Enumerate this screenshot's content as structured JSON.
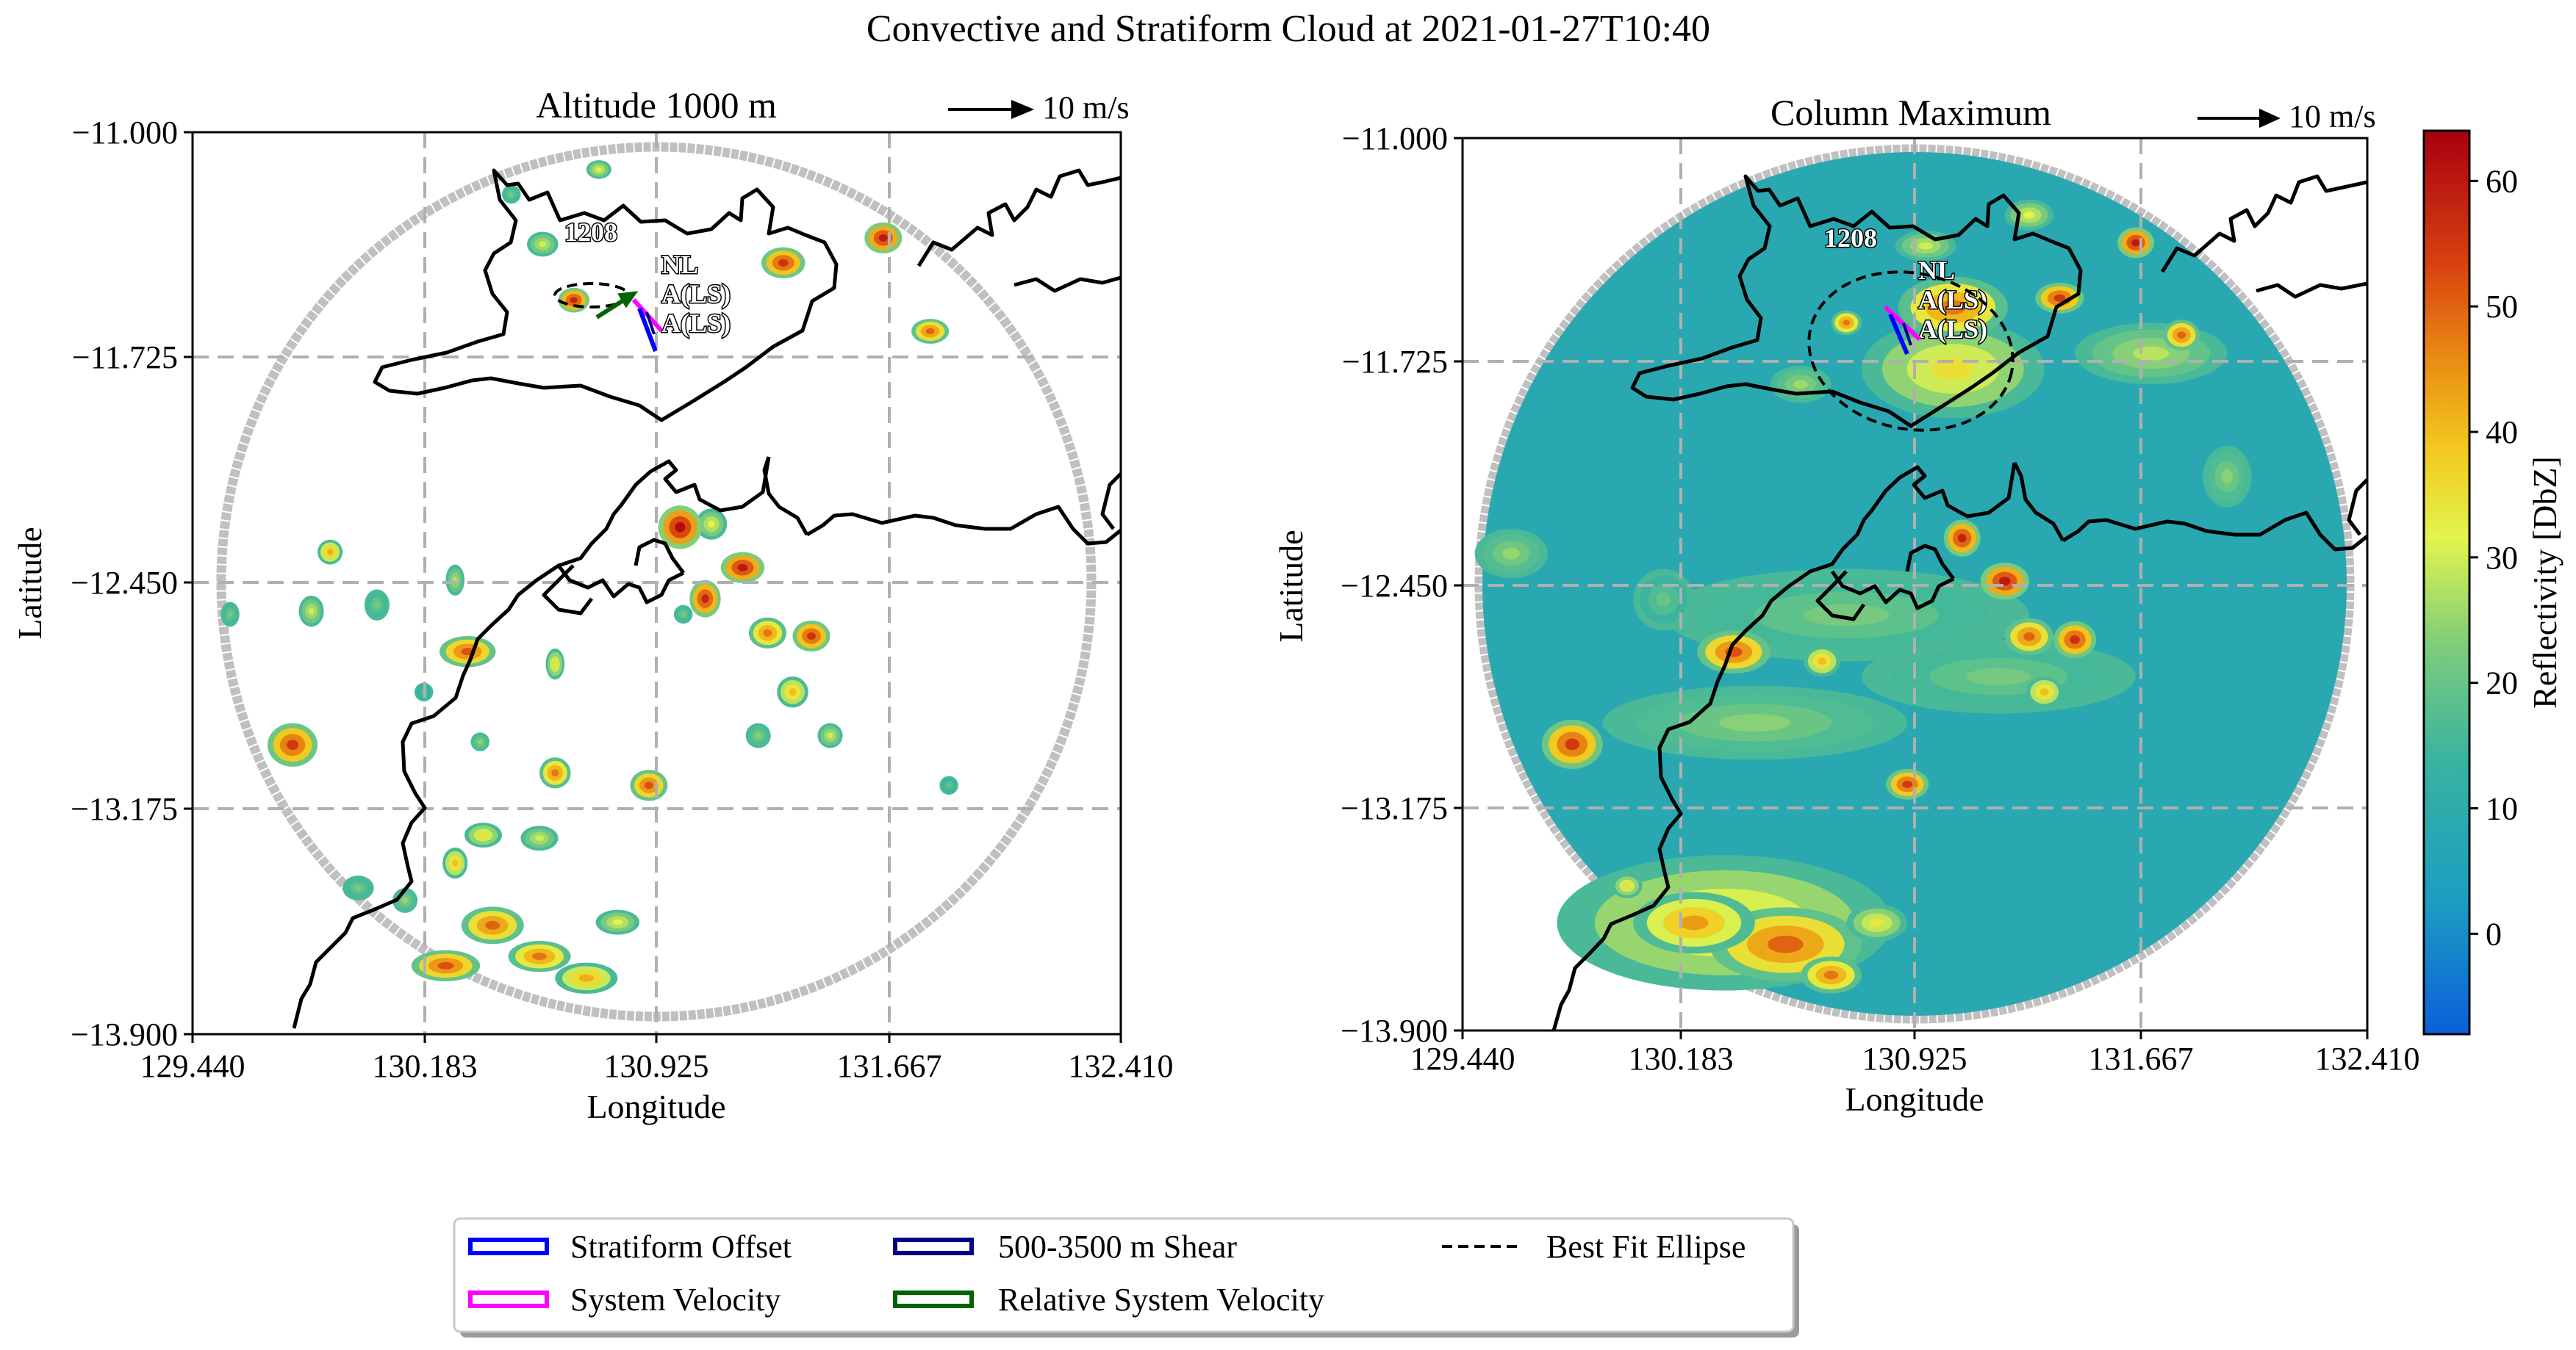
{
  "figure": {
    "title": "Convective and Stratiform Cloud at 2021-01-27T10:40"
  },
  "chart_data": [
    {
      "type": "heatmap",
      "panel_title": "Altitude 1000 m",
      "xlabel": "Longitude",
      "ylabel": "Latitude",
      "xlim": [
        129.44,
        132.41
      ],
      "ylim": [
        -13.9,
        -11.0
      ],
      "xticks": [
        "129.440",
        "130.183",
        "130.925",
        "131.667",
        "132.410"
      ],
      "yticks": [
        "-11.000",
        "-11.725",
        "-12.450",
        "-13.175",
        "-13.900"
      ],
      "grid": true,
      "wind_key": "10 m/s",
      "annotations": [
        "1208",
        "NL",
        "A(LS)",
        "A(LS)"
      ],
      "radar_range_circle": {
        "center": [
          130.925,
          -12.45
        ],
        "radius_deg": 1.37
      },
      "colormap": "jet-like (blue-green-yellow-red)",
      "field": "convective reflectivity at 1000 m",
      "cells": [
        [
          129.56,
          -12.55,
          0.03,
          0.04,
          22
        ],
        [
          129.88,
          -12.35,
          0.04,
          0.04,
          42
        ],
        [
          129.82,
          -12.54,
          0.04,
          0.05,
          30
        ],
        [
          130.03,
          -12.52,
          0.04,
          0.05,
          22
        ],
        [
          130.28,
          -12.44,
          0.03,
          0.05,
          28
        ],
        [
          130.32,
          -12.67,
          0.09,
          0.05,
          52
        ],
        [
          130.18,
          -12.8,
          0.03,
          0.03,
          18
        ],
        [
          129.76,
          -12.97,
          0.08,
          0.07,
          55
        ],
        [
          130.36,
          -12.96,
          0.03,
          0.03,
          25
        ],
        [
          130.6,
          -12.71,
          0.03,
          0.05,
          35
        ],
        [
          130.6,
          -13.06,
          0.05,
          0.05,
          48
        ],
        [
          130.9,
          -13.1,
          0.06,
          0.05,
          52
        ],
        [
          131.08,
          -12.5,
          0.05,
          0.06,
          58
        ],
        [
          131.28,
          -12.61,
          0.06,
          0.05,
          48
        ],
        [
          131.42,
          -12.62,
          0.06,
          0.05,
          56
        ],
        [
          131.36,
          -12.8,
          0.05,
          0.05,
          40
        ],
        [
          131.48,
          -12.94,
          0.04,
          0.04,
          30
        ],
        [
          131.25,
          -12.94,
          0.04,
          0.04,
          24
        ],
        [
          131.1,
          -12.26,
          0.05,
          0.05,
          32
        ],
        [
          131.2,
          -12.4,
          0.07,
          0.05,
          60
        ],
        [
          131.0,
          -12.27,
          0.07,
          0.07,
          62
        ],
        [
          131.01,
          -12.55,
          0.03,
          0.03,
          22
        ],
        [
          130.37,
          -13.26,
          0.06,
          0.04,
          35
        ],
        [
          130.55,
          -13.27,
          0.06,
          0.04,
          30
        ],
        [
          130.28,
          -13.35,
          0.04,
          0.05,
          40
        ],
        [
          129.97,
          -13.43,
          0.05,
          0.04,
          22
        ],
        [
          130.12,
          -13.47,
          0.04,
          0.04,
          25
        ],
        [
          130.4,
          -13.55,
          0.1,
          0.06,
          50
        ],
        [
          130.55,
          -13.65,
          0.1,
          0.05,
          48
        ],
        [
          130.7,
          -13.72,
          0.1,
          0.05,
          42
        ],
        [
          130.8,
          -13.54,
          0.07,
          0.04,
          32
        ],
        [
          130.25,
          -13.68,
          0.11,
          0.05,
          52
        ],
        [
          130.74,
          -11.12,
          0.04,
          0.03,
          32
        ],
        [
          130.46,
          -11.2,
          0.03,
          0.03,
          22
        ],
        [
          130.56,
          -11.36,
          0.05,
          0.04,
          30
        ],
        [
          131.33,
          -11.42,
          0.07,
          0.05,
          56
        ],
        [
          131.65,
          -11.34,
          0.06,
          0.05,
          60
        ],
        [
          131.8,
          -11.64,
          0.06,
          0.04,
          50
        ],
        [
          130.66,
          -11.54,
          0.05,
          0.04,
          58
        ],
        [
          131.86,
          -13.1,
          0.03,
          0.03,
          20
        ]
      ]
    },
    {
      "type": "heatmap",
      "panel_title": "Column Maximum",
      "xlabel": "Longitude",
      "ylabel": "Latitude",
      "xlim": [
        129.44,
        132.41
      ],
      "ylim": [
        -13.9,
        -11.0
      ],
      "xticks": [
        "129.440",
        "130.183",
        "130.925",
        "131.667",
        "132.410"
      ],
      "yticks": [
        "-11.000",
        "-11.725",
        "-12.450",
        "-13.175",
        "-13.900"
      ],
      "grid": true,
      "wind_key": "10 m/s",
      "annotations": [
        "1208",
        "NL",
        "A(LS)",
        "A(LS)"
      ],
      "radar_range_circle": {
        "center": [
          130.925,
          -12.45
        ],
        "radius_deg": 1.37
      },
      "field": "column maximum reflectivity",
      "background_value": 8,
      "cells": [
        [
          130.7,
          -12.55,
          0.6,
          0.15,
          22
        ],
        [
          130.4,
          -12.9,
          0.5,
          0.12,
          24
        ],
        [
          131.2,
          -12.75,
          0.45,
          0.12,
          22
        ],
        [
          131.05,
          -11.75,
          0.3,
          0.16,
          35
        ],
        [
          131.05,
          -11.55,
          0.18,
          0.1,
          48
        ],
        [
          131.7,
          -11.7,
          0.25,
          0.1,
          28
        ],
        [
          130.3,
          -13.55,
          0.55,
          0.22,
          36
        ],
        [
          130.5,
          -13.62,
          0.25,
          0.12,
          50
        ],
        [
          130.2,
          -13.55,
          0.2,
          0.1,
          44
        ],
        [
          129.8,
          -12.97,
          0.1,
          0.08,
          55
        ],
        [
          130.33,
          -12.67,
          0.12,
          0.07,
          52
        ],
        [
          130.62,
          -12.7,
          0.06,
          0.05,
          40
        ],
        [
          131.08,
          -12.3,
          0.06,
          0.06,
          58
        ],
        [
          131.22,
          -12.44,
          0.08,
          0.06,
          60
        ],
        [
          131.3,
          -12.62,
          0.08,
          0.06,
          50
        ],
        [
          131.45,
          -12.63,
          0.07,
          0.06,
          56
        ],
        [
          130.9,
          -13.1,
          0.07,
          0.05,
          55
        ],
        [
          131.35,
          -12.8,
          0.06,
          0.05,
          40
        ],
        [
          131.65,
          -11.34,
          0.06,
          0.05,
          60
        ],
        [
          131.4,
          -11.52,
          0.08,
          0.05,
          55
        ],
        [
          131.8,
          -11.64,
          0.06,
          0.05,
          50
        ],
        [
          130.7,
          -11.6,
          0.05,
          0.04,
          48
        ],
        [
          129.98,
          -13.43,
          0.05,
          0.04,
          35
        ],
        [
          130.96,
          -11.35,
          0.1,
          0.05,
          30
        ],
        [
          131.3,
          -11.25,
          0.08,
          0.05,
          32
        ],
        [
          130.55,
          -11.8,
          0.1,
          0.06,
          26
        ],
        [
          129.6,
          -12.35,
          0.12,
          0.08,
          25
        ],
        [
          130.8,
          -13.55,
          0.1,
          0.06,
          34
        ],
        [
          130.65,
          -13.72,
          0.1,
          0.06,
          48
        ],
        [
          130.1,
          -12.5,
          0.1,
          0.1,
          20
        ],
        [
          131.95,
          -12.1,
          0.08,
          0.1,
          24
        ]
      ]
    }
  ],
  "colorbar": {
    "label": "Reflectivity [DbZ]",
    "range": [
      -8,
      64
    ],
    "ticks": [
      "0",
      "10",
      "20",
      "30",
      "40",
      "50",
      "60"
    ],
    "tick_values": [
      0,
      10,
      20,
      30,
      40,
      50,
      60
    ]
  },
  "legend": {
    "position": "bottom-center",
    "items": [
      {
        "label": "Stratiform Offset",
        "style": "box",
        "color": "#0000ff"
      },
      {
        "label": "System Velocity",
        "style": "box",
        "color": "#ff00ff"
      },
      {
        "label": "500-3500 m Shear",
        "style": "box",
        "color": "#00008b"
      },
      {
        "label": "Relative System Velocity",
        "style": "box",
        "color": "#006400"
      },
      {
        "label": "Best Fit Ellipse",
        "style": "dashed",
        "color": "#000000"
      }
    ]
  }
}
